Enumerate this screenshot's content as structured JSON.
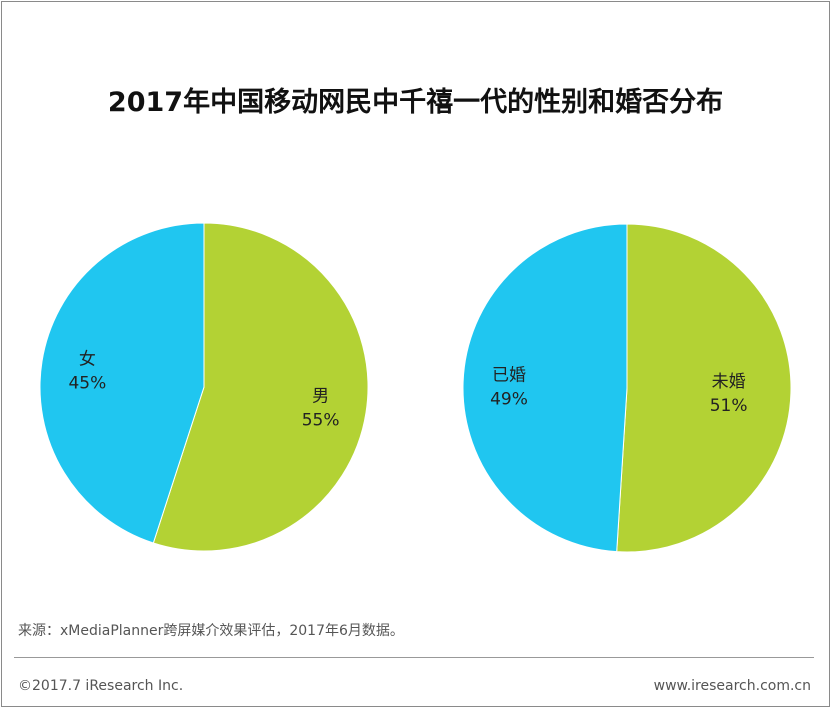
{
  "title": "2017年中国移动网民中千禧一代的性别和婚否分布",
  "chart_data": [
    {
      "type": "pie",
      "slices": [
        {
          "label": "男",
          "value": 55,
          "value_label": "55%",
          "color": "#B3D234"
        },
        {
          "label": "女",
          "value": 45,
          "value_label": "45%",
          "color": "#20C6F0"
        }
      ]
    },
    {
      "type": "pie",
      "slices": [
        {
          "label": "未婚",
          "value": 51,
          "value_label": "51%",
          "color": "#B3D234"
        },
        {
          "label": "已婚",
          "value": 49,
          "value_label": "49%",
          "color": "#20C6F0"
        }
      ]
    }
  ],
  "footer": {
    "source": "来源：xMediaPlanner跨屏媒介效果评估，2017年6月数据。",
    "copyright": "©2017.7 iResearch Inc.",
    "website": "www.iresearch.com.cn"
  }
}
